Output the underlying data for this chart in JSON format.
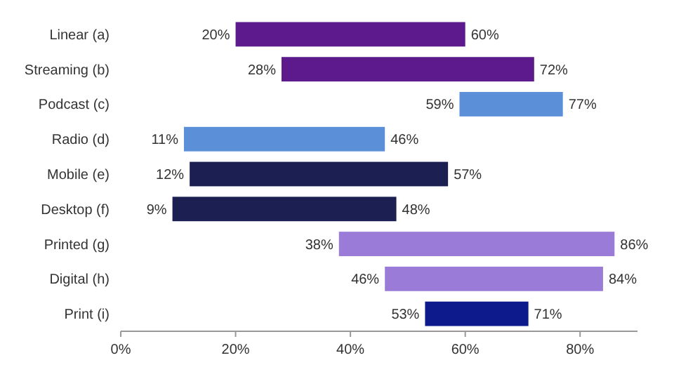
{
  "chart_data": {
    "type": "bar",
    "orientation": "horizontal",
    "categories": [
      "Linear (a)",
      "Streaming (b)",
      "Podcast (c)",
      "Radio (d)",
      "Mobile (e)",
      "Desktop (f)",
      "Printed (g)",
      "Digital (h)",
      "Print (i)"
    ],
    "base": [
      20,
      28,
      59,
      11,
      12,
      9,
      38,
      46,
      53
    ],
    "values": [
      40,
      44,
      18,
      35,
      45,
      39,
      48,
      38,
      18
    ],
    "colors": [
      "#5c1a8c",
      "#5c1a8c",
      "#5b8fd8",
      "#5b8fd8",
      "#1b1f52",
      "#1b1f52",
      "#9a7cd8",
      "#9a7cd8",
      "#0c1a8c"
    ],
    "xlim": [
      0,
      90
    ],
    "xticks": [
      {
        "value": 0,
        "label": "0%"
      },
      {
        "value": 20,
        "label": "20%"
      },
      {
        "value": 40,
        "label": "40%"
      },
      {
        "value": 60,
        "label": "60%"
      },
      {
        "value": 80,
        "label": "80%"
      }
    ],
    "annotations": [
      {
        "text": "20%",
        "x": 20,
        "y": "Linear (a)"
      },
      {
        "text": "60%",
        "x": 60,
        "y": "Linear (a)"
      },
      {
        "text": "28%",
        "x": 28,
        "y": "Streaming (b)"
      },
      {
        "text": "72%",
        "x": 72,
        "y": "Streaming (b)"
      },
      {
        "text": "59%",
        "x": 59,
        "y": "Podcast (c)"
      },
      {
        "text": "77%",
        "x": 77,
        "y": "Podcast (c)"
      },
      {
        "text": "11%",
        "x": 11,
        "y": "Radio (d)"
      },
      {
        "text": "46%",
        "x": 46,
        "y": "Radio (d)"
      },
      {
        "text": "12%",
        "x": 12,
        "y": "Mobile (e)"
      },
      {
        "text": "57%",
        "x": 57,
        "y": "Mobile (e)"
      },
      {
        "text": "9%",
        "x": 9,
        "y": "Desktop (f)"
      },
      {
        "text": "48%",
        "x": 48,
        "y": "Desktop (f)"
      },
      {
        "text": "38%",
        "x": 38,
        "y": "Printed (g)"
      },
      {
        "text": "86%",
        "x": 86,
        "y": "Printed (g)"
      },
      {
        "text": "46%",
        "x": 46,
        "y": "Digital (h)"
      },
      {
        "text": "84%",
        "x": 84,
        "y": "Digital (h)"
      },
      {
        "text": "53%",
        "x": 53,
        "y": "Print (i)"
      },
      {
        "text": "71%",
        "x": 71,
        "y": "Print (i)"
      }
    ]
  }
}
